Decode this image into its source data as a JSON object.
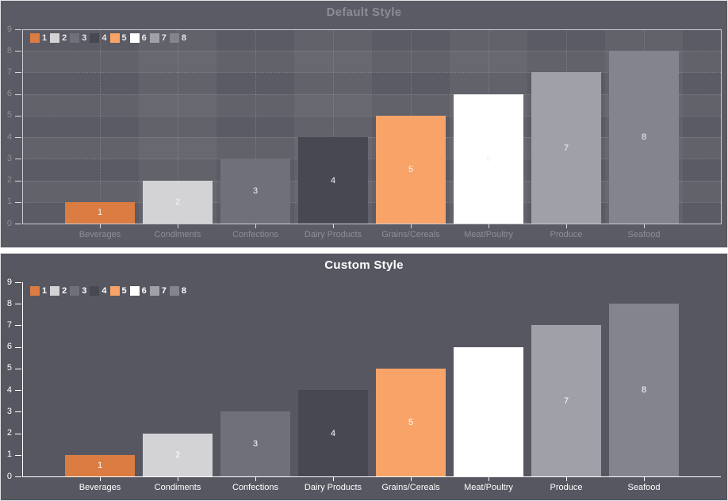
{
  "chart_data": [
    {
      "type": "bar",
      "title": "Default Style",
      "categories": [
        "Beverages",
        "Condiments",
        "Confections",
        "Dairy Products",
        "Grains/Cereals",
        "Meat/Poultry",
        "Produce",
        "Seafood"
      ],
      "values": [
        1,
        2,
        3,
        4,
        5,
        6,
        7,
        8
      ],
      "series_names": [
        "1",
        "2",
        "3",
        "4",
        "5",
        "6",
        "7",
        "8"
      ],
      "bar_colors": [
        "#DB7C42",
        "#D3D3D6",
        "#6F707A",
        "#474851",
        "#F8A468",
        "#FFFFFF",
        "#9FA0A8",
        "#83848E"
      ],
      "data_labels": [
        1,
        2,
        3,
        4,
        5,
        6,
        7,
        8
      ],
      "xlabel": "",
      "ylabel": "",
      "ylim": [
        0,
        9
      ],
      "y_ticks": [
        0,
        1,
        2,
        3,
        4,
        5,
        6,
        7,
        8,
        9
      ],
      "legend_position": "top-left",
      "grid": true,
      "theme": {
        "background": "#5A5B64",
        "title_color": "#8B8C94",
        "axis_label_color": "#8D8E95",
        "axis_line_color": "#D8D9DE",
        "legend_text_color": "#E8E8EA",
        "data_label_color": "#F4F4F6",
        "split_area": true,
        "dotted_grid": true,
        "plot_border": true
      }
    },
    {
      "type": "bar",
      "title": "Custom Style",
      "categories": [
        "Beverages",
        "Condiments",
        "Confections",
        "Dairy Products",
        "Grains/Cereals",
        "Meat/Poultry",
        "Produce",
        "Seafood"
      ],
      "values": [
        1,
        2,
        3,
        4,
        5,
        6,
        7,
        8
      ],
      "series_names": [
        "1",
        "2",
        "3",
        "4",
        "5",
        "6",
        "7",
        "8"
      ],
      "bar_colors": [
        "#DB7C42",
        "#D3D3D6",
        "#6F707A",
        "#474851",
        "#F8A468",
        "#FFFFFF",
        "#9FA0A8",
        "#83848E"
      ],
      "data_labels": [
        1,
        2,
        3,
        4,
        5,
        6,
        7,
        8
      ],
      "xlabel": "",
      "ylabel": "",
      "ylim": [
        0,
        9
      ],
      "y_ticks": [
        0,
        1,
        2,
        3,
        4,
        5,
        6,
        7,
        8,
        9
      ],
      "legend_position": "top-left",
      "grid": false,
      "theme": {
        "background": "#565761",
        "title_color": "#FFFFFF",
        "axis_label_color": "#FFFFFF",
        "axis_line_color": "#FFFFFF",
        "legend_text_color": "#FFFFFF",
        "data_label_color": "#FFFFFF",
        "split_area": false,
        "dotted_grid": false,
        "plot_border": false
      }
    }
  ]
}
